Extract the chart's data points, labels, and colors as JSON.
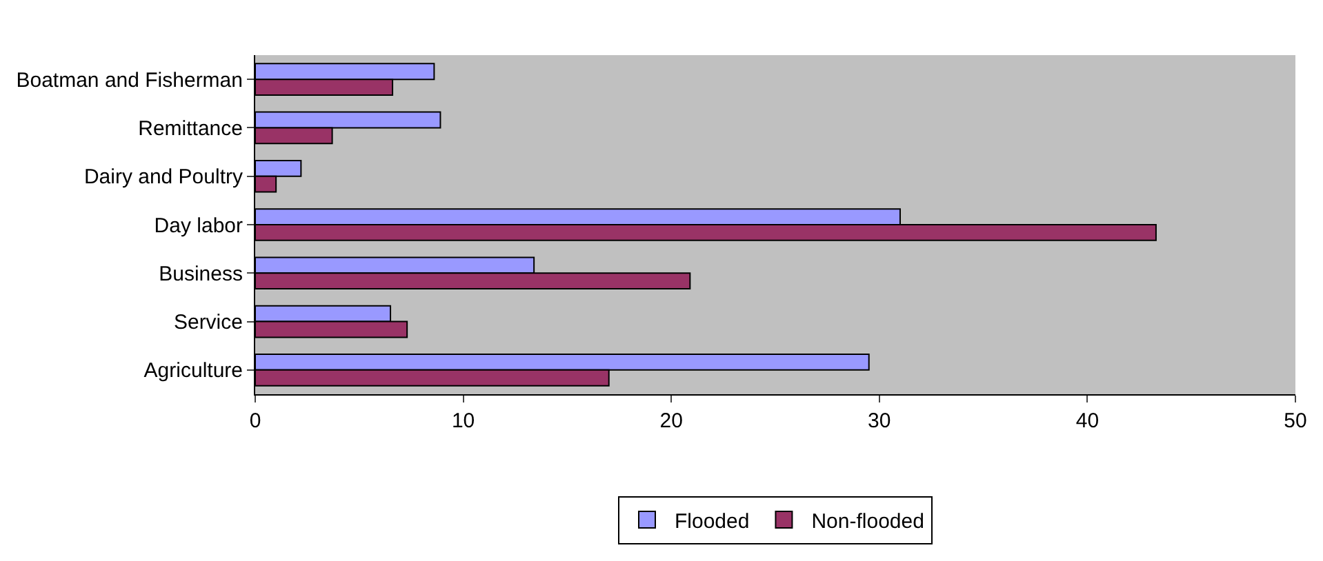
{
  "chart_data": {
    "type": "bar",
    "orientation": "horizontal",
    "categories": [
      "Boatman and Fisherman",
      "Remittance",
      "Dairy and Poultry",
      "Day labor",
      "Business",
      "Service",
      "Agriculture"
    ],
    "series": [
      {
        "name": "Flooded",
        "color": "#9999ff",
        "values": [
          8.6,
          8.9,
          2.2,
          31,
          13.4,
          6.5,
          29.5
        ]
      },
      {
        "name": "Non-flooded",
        "color": "#993366",
        "values": [
          6.6,
          3.7,
          1,
          43.3,
          20.9,
          7.3,
          17
        ]
      }
    ],
    "xlim": [
      0,
      50
    ],
    "xticks": [
      0,
      10,
      20,
      30,
      40,
      50
    ],
    "grid": false,
    "legend": "bottom"
  }
}
